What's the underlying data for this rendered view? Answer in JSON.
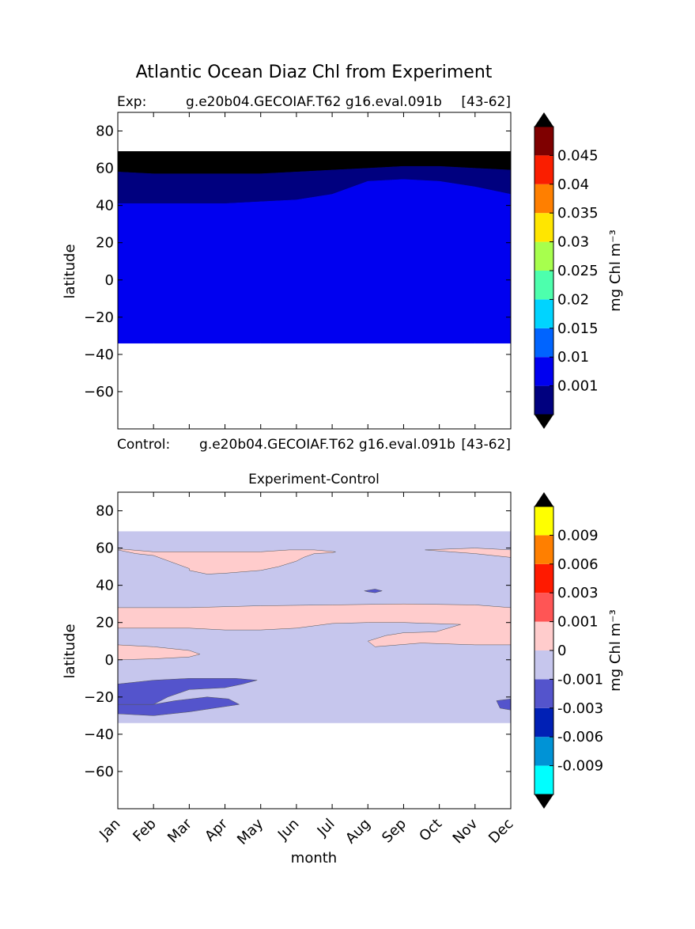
{
  "figure_title": "Atlantic Ocean Diaz Chl from Experiment",
  "panels": [
    {
      "id": "experiment",
      "title_left": "Exp:",
      "title_center": "g.e20b04.GECOIAF.T62 g16.eval.091b",
      "title_right": "[43-62]",
      "ylabel": "latitude"
    },
    {
      "id": "control-label",
      "title_left": "Control:",
      "title_center": "g.e20b04.GECOIAF.T62 g16.eval.091b",
      "title_right": "[43-62]"
    },
    {
      "id": "difference",
      "title": "Experiment-Control",
      "ylabel": "latitude",
      "xlabel": "month"
    }
  ],
  "chart_data": [
    {
      "type": "heatmap",
      "subtype": "filled-contour",
      "title": "Exp: g.e20b04.GECOIAF.T62 g16.eval.091b [43-62]",
      "xlabel": "",
      "ylabel": "latitude",
      "x_ticks": [
        "Jan",
        "Feb",
        "Mar",
        "Apr",
        "May",
        "Jun",
        "Jul",
        "Aug",
        "Sep",
        "Oct",
        "Nov",
        "Dec"
      ],
      "yticks": [
        80,
        60,
        40,
        20,
        0,
        -20,
        -40,
        -60
      ],
      "xlim": [
        0,
        11
      ],
      "ylim": [
        -80,
        90
      ],
      "data_lat_range": [
        -34,
        69
      ],
      "colorbar": {
        "label": "mg Chl m⁻³",
        "tick_labels": [
          "0.001",
          "0.01",
          "0.015",
          "0.02",
          "0.025",
          "0.03",
          "0.035",
          "0.04",
          "0.045"
        ],
        "extend": "both",
        "colors": [
          "#00007f",
          "#0000f0",
          "#0064ff",
          "#00d4ff",
          "#4dffad",
          "#a7ff4d",
          "#ffe600",
          "#ff7f00",
          "#fa1e00",
          "#7f0000"
        ],
        "under_color": "#000000",
        "over_color": "#000000"
      },
      "regions": [
        {
          "name": "below 0.001 (over color)",
          "color": "#000000",
          "lat_lower_by_month": [
            58,
            57,
            57,
            57,
            57,
            58,
            59,
            60,
            61,
            61,
            60,
            59
          ]
        },
        {
          "name": "0.001-0.01",
          "color": "#00007f",
          "lat_lower_by_month": [
            41,
            41,
            41,
            41,
            42,
            43,
            46,
            53,
            54,
            53,
            50,
            46
          ]
        },
        {
          "name": "0.01-0.015",
          "color": "#0000f0",
          "lat_lower_by_month": [
            -34,
            -34,
            -34,
            -34,
            -34,
            -34,
            -34,
            -34,
            -34,
            -34,
            -34,
            -34
          ]
        }
      ]
    },
    {
      "type": "heatmap",
      "subtype": "filled-contour",
      "title": "Experiment-Control",
      "xlabel": "month",
      "ylabel": "latitude",
      "x_ticks": [
        "Jan",
        "Feb",
        "Mar",
        "Apr",
        "May",
        "Jun",
        "Jul",
        "Aug",
        "Sep",
        "Oct",
        "Nov",
        "Dec"
      ],
      "yticks": [
        80,
        60,
        40,
        20,
        0,
        -20,
        -40,
        -60
      ],
      "xlim": [
        0,
        11
      ],
      "ylim": [
        -80,
        90
      ],
      "data_lat_range": [
        -34,
        69
      ],
      "colorbar": {
        "label": "mg Chl m⁻³",
        "tick_labels": [
          "-0.009",
          "-0.006",
          "-0.003",
          "-0.001",
          "0",
          "0.001",
          "0.003",
          "0.006",
          "0.009"
        ],
        "extend": "both",
        "colors": [
          "#00ffff",
          "#0093d6",
          "#0020b5",
          "#5454cc",
          "#c6c6ed",
          "#ffcccc",
          "#ff5555",
          "#ff1a00",
          "#ff7f00",
          "#ffff00"
        ],
        "under_color": "#000000",
        "over_color": "#000000"
      },
      "background_color": "#c6c6ed",
      "regions": [
        {
          "name": "north positive band",
          "color": "#ffcccc",
          "upper": [
            [
              0,
              59
            ],
            [
              0.5,
              57
            ],
            [
              1,
              56
            ],
            [
              2,
              49
            ],
            [
              2,
              48
            ],
            [
              2.5,
              46
            ],
            [
              3,
              46.5
            ],
            [
              4,
              48
            ],
            [
              4.5,
              50
            ],
            [
              5,
              53
            ],
            [
              5.2,
              55
            ],
            [
              5.5,
              57
            ],
            [
              6,
              57.5
            ],
            [
              6.1,
              58
            ],
            [
              5.5,
              59
            ],
            [
              4.8,
              59
            ],
            [
              4,
              58
            ],
            [
              3,
              58
            ],
            [
              1,
              58
            ],
            [
              0.1,
              59.5
            ]
          ]
        },
        {
          "name": "northeast positive patch",
          "color": "#ffcccc",
          "upper": [
            [
              8.6,
              59
            ],
            [
              9.3,
              58
            ],
            [
              10,
              57
            ],
            [
              11,
              55
            ],
            [
              11,
              59
            ],
            [
              10,
              60
            ]
          ]
        },
        {
          "name": "mid positive band",
          "color": "#ffcccc",
          "upper": [
            [
              0,
              28
            ],
            [
              2,
              28
            ],
            [
              4,
              29
            ],
            [
              6,
              29.5
            ],
            [
              8,
              30
            ],
            [
              10,
              29.5
            ],
            [
              11,
              28
            ],
            [
              11,
              8
            ],
            [
              10,
              8
            ],
            [
              8.5,
              9
            ],
            [
              7.2,
              7
            ],
            [
              7,
              10
            ],
            [
              7.5,
              13
            ],
            [
              8,
              14.5
            ],
            [
              8.9,
              15
            ],
            [
              9.6,
              19
            ],
            [
              8,
              20
            ],
            [
              7,
              20
            ],
            [
              6,
              19.5
            ],
            [
              5,
              17
            ],
            [
              4,
              16
            ],
            [
              3,
              16
            ],
            [
              2,
              17
            ],
            [
              0,
              17
            ]
          ]
        },
        {
          "name": "equatorial positive patch",
          "color": "#ffcccc",
          "upper": [
            [
              0,
              8
            ],
            [
              1,
              7
            ],
            [
              2,
              5
            ],
            [
              2.3,
              3
            ],
            [
              2,
              1.5
            ],
            [
              1,
              0.5
            ],
            [
              0,
              0
            ]
          ]
        },
        {
          "name": "south negative patch",
          "color": "#5454cc",
          "upper": [
            [
              0,
              -13
            ],
            [
              1,
              -11
            ],
            [
              2,
              -10
            ],
            [
              3,
              -10
            ],
            [
              3.3,
              -10
            ],
            [
              3.9,
              -11
            ],
            [
              3.5,
              -13
            ],
            [
              3,
              -15
            ],
            [
              2,
              -16
            ],
            [
              1.4,
              -20
            ],
            [
              1,
              -24
            ],
            [
              0,
              -24
            ]
          ]
        },
        {
          "name": "lower south negative patch",
          "color": "#5454cc",
          "upper": [
            [
              0,
              -24
            ],
            [
              1,
              -24
            ],
            [
              1.6,
              -22
            ],
            [
              2.5,
              -20
            ],
            [
              3.1,
              -21
            ],
            [
              3.4,
              -24
            ],
            [
              2,
              -28
            ],
            [
              1,
              -30
            ],
            [
              0,
              -29
            ]
          ]
        },
        {
          "name": "north small negative patch",
          "color": "#5454cc",
          "upper": [
            [
              6.9,
              37
            ],
            [
              7.2,
              38
            ],
            [
              7.4,
              37
            ],
            [
              7.2,
              36
            ],
            [
              7,
              36.5
            ]
          ]
        },
        {
          "name": "southeast negative patch",
          "color": "#5454cc",
          "upper": [
            [
              10.6,
              -22
            ],
            [
              11,
              -21
            ],
            [
              11,
              -27
            ],
            [
              10.7,
              -26
            ]
          ]
        }
      ]
    }
  ]
}
